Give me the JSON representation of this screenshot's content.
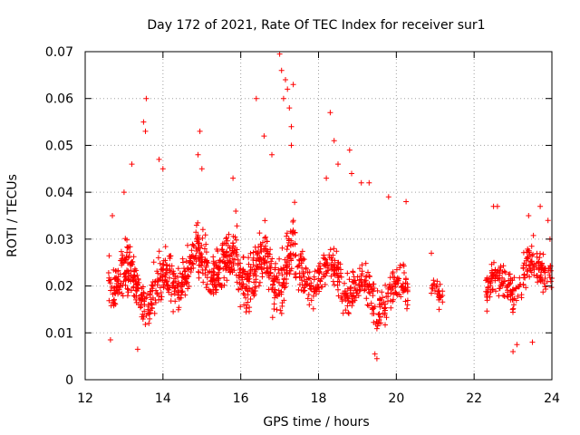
{
  "chart_data": {
    "type": "scatter",
    "title": "Day 172 of 2021, Rate Of TEC Index for receiver sur1",
    "xlabel": "GPS time / hours",
    "ylabel": "ROTI / TECUs",
    "xlim": [
      12,
      24
    ],
    "ylim": [
      0,
      0.07
    ],
    "xticks": [
      12,
      14,
      16,
      18,
      20,
      22,
      24
    ],
    "xtick_labels": [
      "12",
      "14",
      "16",
      "18",
      "20",
      "22",
      "24"
    ],
    "yticks": [
      0,
      0.01,
      0.02,
      0.03,
      0.04,
      0.05,
      0.06,
      0.07
    ],
    "ytick_labels": [
      "0",
      "0.01",
      "0.02",
      "0.03",
      "0.04",
      "0.05",
      "0.06",
      "0.07"
    ],
    "grid": true,
    "marker": "plus",
    "colors": {
      "points": "#ff0000",
      "axes": "#000000",
      "grid": "#a0a0a0",
      "background": "#ffffff"
    },
    "series": [
      {
        "name": "sur1",
        "segments": [
          {
            "x_range": [
              12.6,
              15.8
            ],
            "base": 0.022,
            "amp": 0.006,
            "spread": 0.008,
            "count": 560
          },
          {
            "x_range": [
              15.8,
              17.4
            ],
            "base": 0.026,
            "amp": 0.008,
            "spread": 0.01,
            "count": 300
          },
          {
            "x_range": [
              17.4,
              20.3
            ],
            "base": 0.02,
            "amp": 0.005,
            "spread": 0.007,
            "count": 380
          },
          {
            "x_range": [
              20.9,
              21.2
            ],
            "base": 0.018,
            "amp": 0.002,
            "spread": 0.004,
            "count": 25
          },
          {
            "x_range": [
              22.3,
              24.0
            ],
            "base": 0.022,
            "amp": 0.005,
            "spread": 0.007,
            "count": 220
          }
        ],
        "points": [
          [
            12.65,
            0.0085
          ],
          [
            12.7,
            0.035
          ],
          [
            13.0,
            0.04
          ],
          [
            13.2,
            0.046
          ],
          [
            13.35,
            0.0065
          ],
          [
            13.5,
            0.055
          ],
          [
            13.55,
            0.053
          ],
          [
            13.57,
            0.06
          ],
          [
            13.9,
            0.047
          ],
          [
            14.0,
            0.045
          ],
          [
            14.95,
            0.053
          ],
          [
            14.9,
            0.048
          ],
          [
            15.0,
            0.045
          ],
          [
            15.8,
            0.043
          ],
          [
            16.4,
            0.06
          ],
          [
            16.6,
            0.052
          ],
          [
            16.8,
            0.048
          ],
          [
            17.0,
            0.0695
          ],
          [
            17.05,
            0.066
          ],
          [
            17.15,
            0.064
          ],
          [
            17.2,
            0.062
          ],
          [
            17.25,
            0.058
          ],
          [
            17.35,
            0.063
          ],
          [
            17.3,
            0.054
          ],
          [
            17.1,
            0.06
          ],
          [
            17.3,
            0.05
          ],
          [
            18.3,
            0.057
          ],
          [
            18.4,
            0.051
          ],
          [
            18.5,
            0.046
          ],
          [
            18.8,
            0.049
          ],
          [
            18.85,
            0.044
          ],
          [
            18.2,
            0.043
          ],
          [
            19.1,
            0.042
          ],
          [
            19.5,
            0.0045
          ],
          [
            19.45,
            0.0055
          ],
          [
            19.3,
            0.042
          ],
          [
            19.8,
            0.039
          ],
          [
            20.25,
            0.038
          ],
          [
            20.9,
            0.027
          ],
          [
            21.05,
            0.021
          ],
          [
            21.1,
            0.015
          ],
          [
            22.6,
            0.037
          ],
          [
            23.0,
            0.006
          ],
          [
            23.1,
            0.0075
          ],
          [
            23.4,
            0.035
          ],
          [
            23.7,
            0.037
          ],
          [
            23.9,
            0.034
          ],
          [
            23.95,
            0.03
          ],
          [
            23.5,
            0.008
          ],
          [
            22.5,
            0.037
          ]
        ]
      }
    ]
  }
}
